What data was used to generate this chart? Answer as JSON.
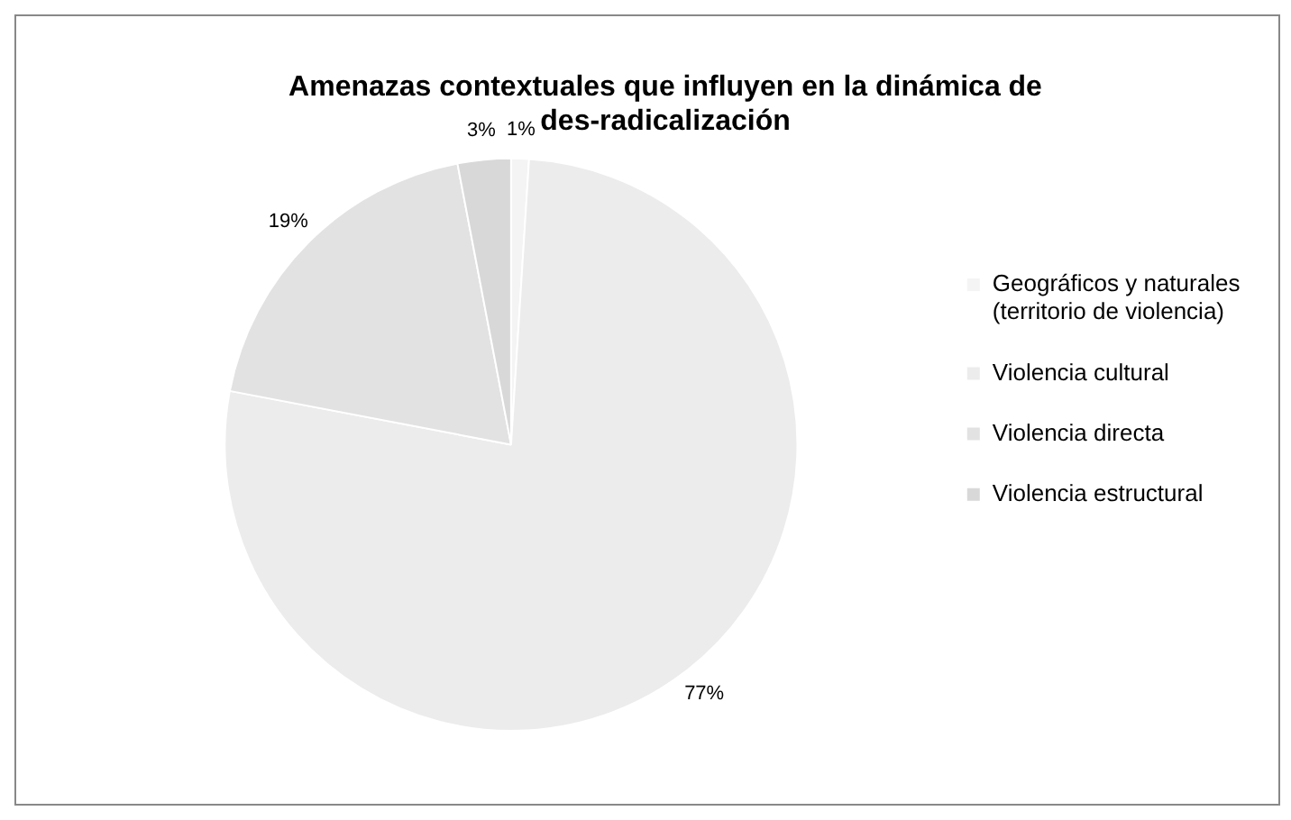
{
  "chart_data": {
    "type": "pie",
    "title": "Amenazas contextuales que influyen en la dinámica de des-radicalización",
    "categories": [
      "Geográficos y naturales (territorio de violencia)",
      "Violencia cultural",
      "Violencia directa",
      "Violencia estructural"
    ],
    "values": [
      1,
      77,
      19,
      3
    ],
    "value_labels": [
      "1%",
      "77%",
      "19%",
      "3%"
    ],
    "colors": [
      "#f4f4f4",
      "#ececec",
      "#e2e2e2",
      "#d8d8d8"
    ],
    "legend": "right"
  }
}
